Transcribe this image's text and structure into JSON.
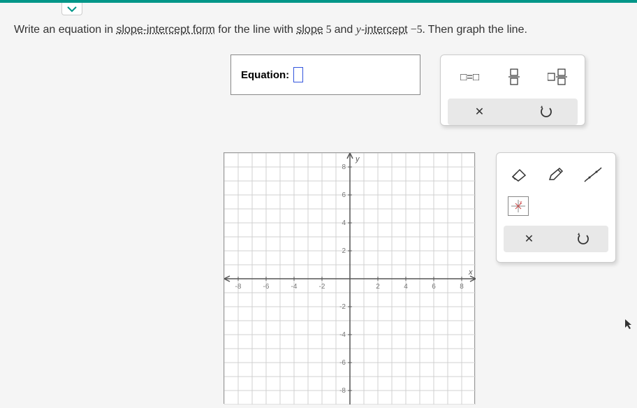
{
  "question": {
    "prefix": "Write an ",
    "word_equation": "equation",
    "mid1": " in ",
    "term_slope_intercept": "slope-intercept form",
    "mid2": " for the line with ",
    "term_slope": "slope",
    "slope_val": " 5 ",
    "mid3": "and ",
    "yint_y": "y",
    "yint_dash": "-",
    "term_intercept": "intercept",
    "intercept_val": " −5. ",
    "suffix": "Then graph the line."
  },
  "equation": {
    "label": "Equation:"
  },
  "panel1": {
    "eq_template": "□=□",
    "clear": "✕",
    "undo": "↺"
  },
  "panel2": {
    "clear": "✕",
    "undo": "↺"
  },
  "graph": {
    "xmin": -9,
    "xmax": 9,
    "ymin": -9,
    "ymax": 9,
    "tick_step": 2,
    "x_ticks": [
      -8,
      -6,
      -4,
      -2,
      2,
      4,
      6,
      8
    ],
    "y_ticks": [
      -8,
      -6,
      -4,
      -2,
      2,
      4,
      6,
      8
    ],
    "grid_color": "#d0d0d0",
    "axis_color": "#555",
    "tick_label_color": "#777",
    "y_label": "y",
    "x_label": "x",
    "background": "#ffffff"
  },
  "colors": {
    "teal": "#009688",
    "panel_bg": "#ffffff",
    "panel_border": "#cccccc",
    "gray_row": "#e8e8e8",
    "input_border": "#3355dd"
  }
}
